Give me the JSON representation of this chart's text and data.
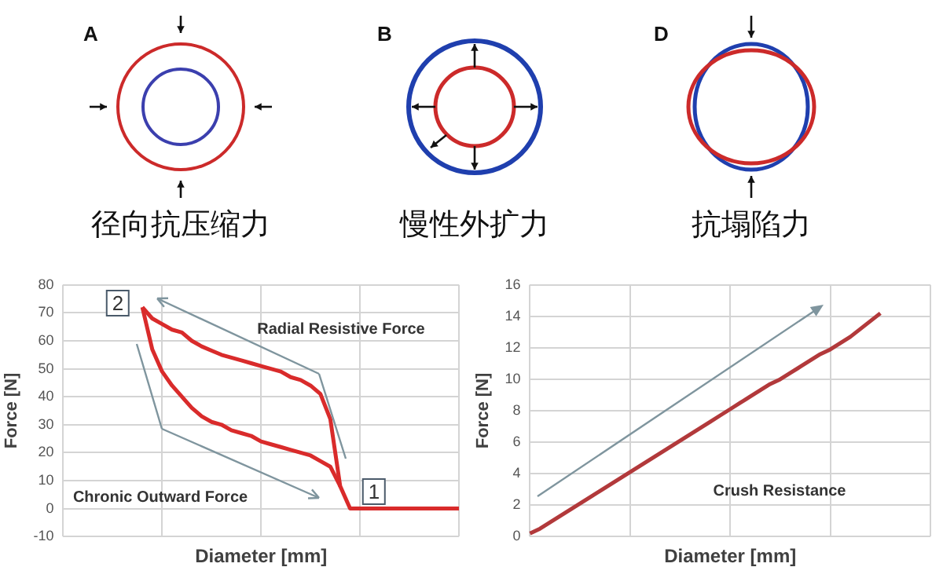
{
  "chart_data": [
    {
      "type": "other",
      "annotations": [
        "A",
        "径向抗压缩力",
        "B",
        "慢性外扩力",
        "D",
        "抗塌陷力"
      ]
    },
    {
      "type": "line",
      "xlabel": "Diameter [mm]",
      "ylabel": "Force [N]",
      "categories": [
        null,
        null,
        null,
        null,
        null,
        null,
        null,
        null,
        null,
        null,
        null,
        null,
        null,
        null,
        null,
        null,
        null,
        null,
        null,
        null,
        null,
        null,
        null,
        null,
        null,
        null,
        null,
        null,
        null,
        null,
        null,
        null,
        null,
        null,
        null,
        null,
        null,
        null,
        null,
        null,
        null
      ],
      "series": [
        {
          "color": "#d92b2b",
          "values": [
            null,
            null,
            null,
            null,
            null,
            null,
            null,
            null,
            72,
            68,
            66,
            64,
            63,
            60,
            58,
            56.5,
            55,
            54,
            53,
            52,
            51,
            50,
            49,
            47,
            46,
            44,
            41,
            32,
            8,
            0,
            0,
            0,
            0,
            0,
            0,
            0,
            0,
            0,
            0,
            0,
            0
          ]
        },
        {
          "color": "#d92b2b",
          "values": [
            null,
            null,
            null,
            null,
            null,
            null,
            null,
            null,
            72,
            57,
            49,
            44,
            40,
            36,
            33,
            31,
            30,
            28,
            27,
            26,
            24,
            23,
            22,
            21,
            20,
            19,
            17,
            15,
            8,
            null,
            null,
            null,
            null,
            null,
            null,
            null,
            null,
            null,
            null,
            null,
            null
          ]
        }
      ],
      "ylim": [
        -10,
        80
      ],
      "yticks": [
        -10,
        0,
        10,
        20,
        30,
        40,
        50,
        60,
        70,
        80
      ],
      "grid": true,
      "tick_labels": "y",
      "marker": "none",
      "line_style": "solid",
      "annotations": [
        "2",
        "Radial Resistive Force",
        "Chronic Outward Force",
        "1"
      ]
    },
    {
      "type": "line",
      "xlabel": "Diameter [mm]",
      "ylabel": "Force [N]",
      "categories": [
        null,
        null,
        null,
        null,
        null,
        null,
        null,
        null,
        null,
        null,
        null,
        null,
        null,
        null,
        null,
        null,
        null,
        null,
        null,
        null,
        null,
        null,
        null,
        null,
        null,
        null,
        null,
        null,
        null,
        null,
        null,
        null,
        null,
        null,
        null,
        null,
        null,
        null,
        null,
        null,
        null
      ],
      "series": [
        {
          "color": "#b2393b",
          "values": [
            0.2,
            0.5,
            0.9,
            1.3,
            1.7,
            2.1,
            2.5,
            2.9,
            3.3,
            3.7,
            4.1,
            4.5,
            4.9,
            5.3,
            5.7,
            6.1,
            6.5,
            6.9,
            7.3,
            7.7,
            8.1,
            8.5,
            8.9,
            9.3,
            9.7,
            10.0,
            10.4,
            10.8,
            11.2,
            11.6,
            11.9,
            12.3,
            12.7,
            13.2,
            13.7,
            14.2,
            null,
            null,
            null,
            null,
            null
          ]
        }
      ],
      "ylim": [
        0,
        16
      ],
      "yticks": [
        0,
        2,
        4,
        6,
        8,
        10,
        12,
        14,
        16
      ],
      "grid": true,
      "tick_labels": "y",
      "marker": "none",
      "line_style": "solid",
      "annotations": [
        "Crush Resistance"
      ]
    }
  ]
}
